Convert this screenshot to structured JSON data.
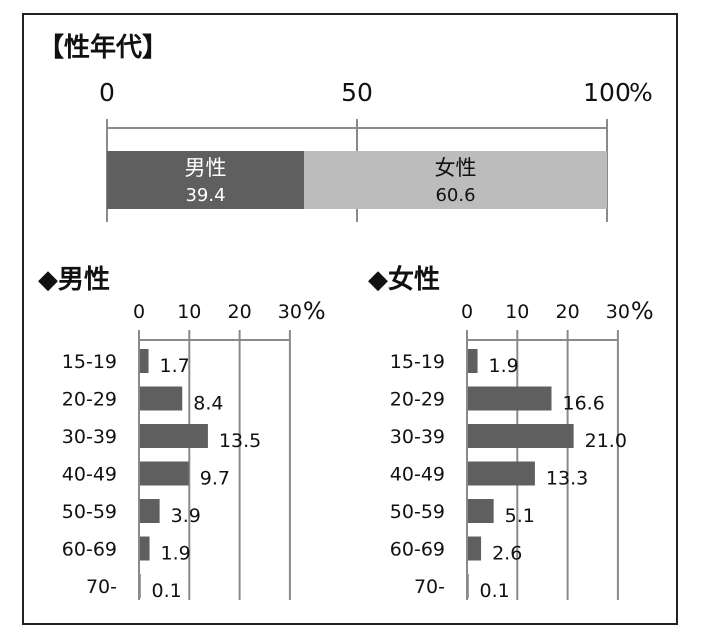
{
  "chart_data": [
    {
      "type": "bar",
      "orientation": "horizontal-stacked",
      "title": "【性年代】",
      "axis": {
        "ticks": [
          "0",
          "50",
          "100"
        ],
        "unit": "%",
        "range": [
          0,
          100
        ]
      },
      "series": [
        {
          "name": "男性",
          "value": 39.4,
          "label": "39.4",
          "color": "#5f5f5f",
          "text_color": "#ffffff"
        },
        {
          "name": "女性",
          "value": 60.6,
          "label": "60.6",
          "color": "#bcbcbc",
          "text_color": "#111111"
        }
      ]
    },
    {
      "type": "bar",
      "orientation": "horizontal",
      "title": "◆男性",
      "axis": {
        "ticks": [
          "0",
          "10",
          "20",
          "30"
        ],
        "unit": "%",
        "range": [
          0,
          30
        ]
      },
      "categories": [
        "15-19",
        "20-29",
        "30-39",
        "40-49",
        "50-59",
        "60-69",
        "70-"
      ],
      "values": [
        1.7,
        8.4,
        13.5,
        9.7,
        3.9,
        1.9,
        0.1
      ],
      "labels": [
        "1.7",
        "8.4",
        "13.5",
        "9.7",
        "3.9",
        "1.9",
        "0.1"
      ],
      "color": "#5f5f5f"
    },
    {
      "type": "bar",
      "orientation": "horizontal",
      "title": "◆女性",
      "axis": {
        "ticks": [
          "0",
          "10",
          "20",
          "30"
        ],
        "unit": "%",
        "range": [
          0,
          30
        ]
      },
      "categories": [
        "15-19",
        "20-29",
        "30-39",
        "40-49",
        "50-59",
        "60-69",
        "70-"
      ],
      "values": [
        1.9,
        16.6,
        21.0,
        13.3,
        5.1,
        2.6,
        0.1
      ],
      "labels": [
        "1.9",
        "16.6",
        "21.0",
        "13.3",
        "5.1",
        "2.6",
        "0.1"
      ],
      "color": "#5f5f5f"
    }
  ]
}
